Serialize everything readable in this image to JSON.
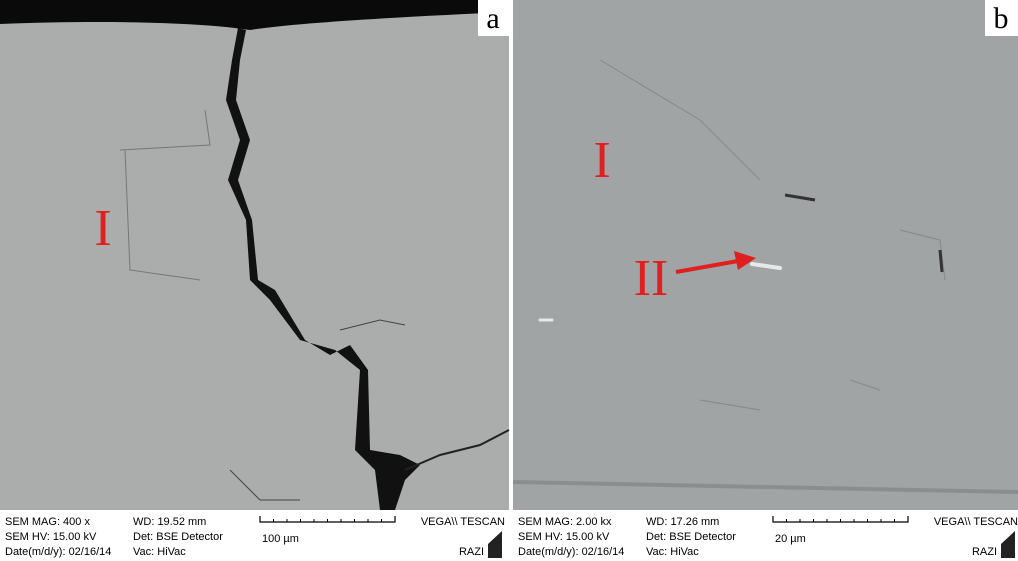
{
  "panels": [
    {
      "label": "a",
      "regions": [
        "I"
      ],
      "footer": {
        "mag": "SEM MAG: 400 x",
        "hv": "SEM HV: 15.00 kV",
        "date": "Date(m/d/y): 02/16/14",
        "wd": "WD: 19.52 mm",
        "det": "Det: BSE Detector",
        "vac": "Vac: HiVac",
        "scale": "100 µm",
        "brand": "VEGA\\\\ TESCAN",
        "lab": "RAZI"
      }
    },
    {
      "label": "b",
      "regions": [
        "I",
        "II"
      ],
      "footer": {
        "mag": "SEM MAG: 2.00 kx",
        "hv": "SEM HV: 15.00 kV",
        "date": "Date(m/d/y): 02/16/14",
        "wd": "WD: 17.26 mm",
        "det": "Det: BSE Detector",
        "vac": "Vac: HiVac",
        "scale": "20 µm",
        "brand": "VEGA\\\\ TESCAN",
        "lab": "RAZI"
      }
    }
  ]
}
